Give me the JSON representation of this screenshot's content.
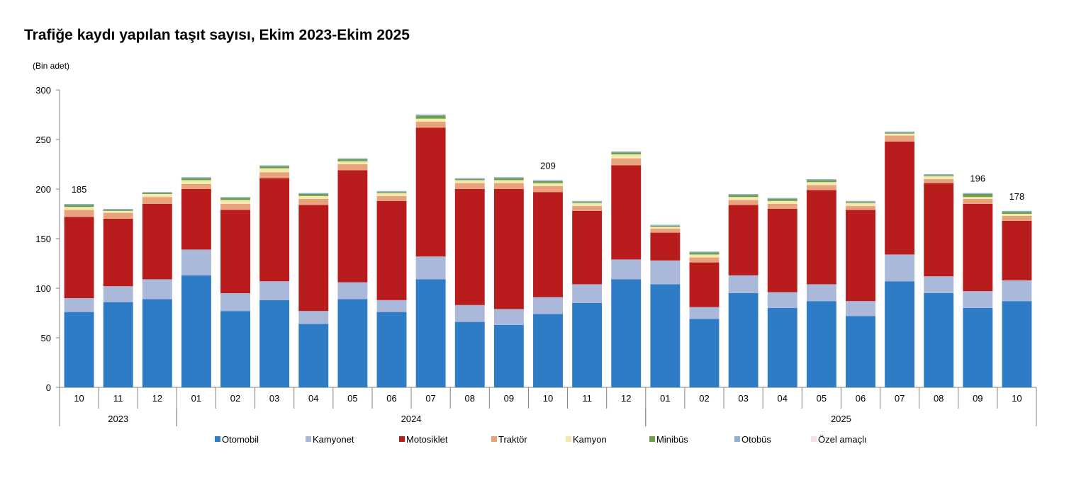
{
  "chart_data": {
    "type": "bar",
    "stacked": true,
    "title": "Trafiğe kaydı yapılan taşıt sayısı, Ekim 2023-Ekim 2025",
    "unit_label": "(Bin adet)",
    "ylim": [
      0,
      300
    ],
    "yticks": [
      0,
      50,
      100,
      150,
      200,
      250,
      300
    ],
    "grid": false,
    "legend_position": "bottom",
    "categories": [
      "10",
      "11",
      "12",
      "01",
      "02",
      "03",
      "04",
      "05",
      "06",
      "07",
      "08",
      "09",
      "10",
      "11",
      "12",
      "01",
      "02",
      "03",
      "04",
      "05",
      "06",
      "07",
      "08",
      "09",
      "10"
    ],
    "year_groups": [
      {
        "label": "2023",
        "start": 0,
        "end": 2
      },
      {
        "label": "2024",
        "start": 3,
        "end": 14
      },
      {
        "label": "2025",
        "start": 15,
        "end": 24
      }
    ],
    "series": [
      {
        "name": "Otomobil",
        "color": "#2e7bc6",
        "values": [
          76,
          86,
          89,
          113,
          77,
          88,
          64,
          89,
          76,
          109,
          66,
          63,
          74,
          85,
          109,
          104,
          69,
          95,
          80,
          87,
          72,
          107,
          95,
          80,
          87
        ]
      },
      {
        "name": "Kamyonet",
        "color": "#aab8d9",
        "values": [
          14,
          16,
          20,
          26,
          18,
          19,
          13,
          17,
          12,
          23,
          17,
          16,
          17,
          19,
          20,
          24,
          12,
          18,
          16,
          17,
          15,
          27,
          17,
          17,
          21
        ]
      },
      {
        "name": "Motosiklet",
        "color": "#b91c1c",
        "values": [
          82,
          68,
          76,
          61,
          84,
          104,
          107,
          113,
          100,
          130,
          117,
          121,
          106,
          74,
          95,
          28,
          45,
          71,
          84,
          95,
          92,
          114,
          94,
          88,
          60
        ]
      },
      {
        "name": "Traktör",
        "color": "#e8a27c",
        "values": [
          7,
          6,
          7,
          5,
          6,
          6,
          6,
          6,
          5,
          6,
          6,
          6,
          6,
          5,
          7,
          4,
          5,
          5,
          5,
          5,
          4,
          6,
          4,
          5,
          5
        ]
      },
      {
        "name": "Kamyon",
        "color": "#f4eab0",
        "values": [
          3,
          2,
          3,
          4,
          4,
          4,
          3,
          3,
          3,
          3,
          3,
          3,
          3,
          3,
          4,
          2,
          3,
          3,
          3,
          3,
          3,
          2,
          3,
          2,
          2
        ]
      },
      {
        "name": "Minibüs",
        "color": "#6e9f4a",
        "values": [
          2,
          1,
          1,
          2,
          2,
          2,
          2,
          2,
          1,
          3,
          1,
          2,
          2,
          1,
          2,
          1,
          2,
          2,
          2,
          2,
          1,
          1,
          1,
          3,
          2
        ]
      },
      {
        "name": "Otobüs",
        "color": "#8fb0d4",
        "values": [
          1,
          1,
          1,
          1,
          1,
          1,
          1,
          1,
          1,
          1,
          1,
          1,
          1,
          1,
          1,
          1,
          1,
          1,
          1,
          1,
          1,
          1,
          1,
          1,
          1
        ]
      },
      {
        "name": "Özel amaçlı",
        "color": "#f2e4e4",
        "values": [
          0,
          0,
          0,
          0,
          0,
          0,
          0,
          0,
          0,
          1,
          0,
          0,
          0,
          0,
          0,
          0,
          0,
          0,
          0,
          0,
          0,
          0,
          0,
          0,
          0
        ]
      }
    ],
    "data_labels": [
      {
        "index": 0,
        "text": "185"
      },
      {
        "index": 12,
        "text": "209"
      },
      {
        "index": 23,
        "text": "196"
      },
      {
        "index": 24,
        "text": "178"
      }
    ]
  }
}
